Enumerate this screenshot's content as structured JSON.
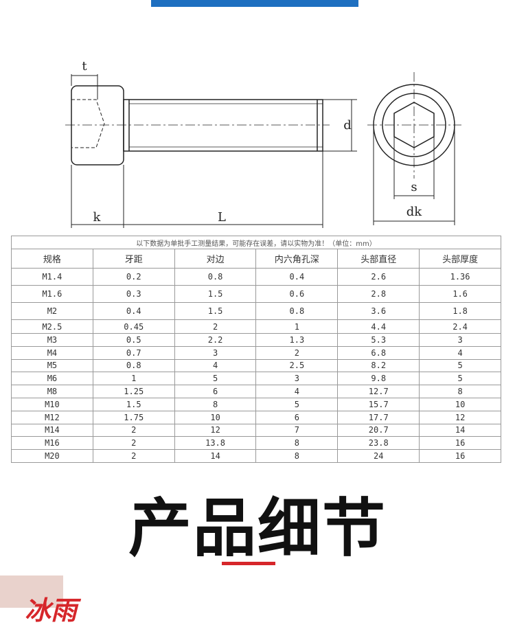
{
  "drawing": {
    "labels": {
      "t": "t",
      "d": "d",
      "k": "k",
      "L": "L",
      "s": "s",
      "dk": "dk"
    }
  },
  "table": {
    "note": "以下数据为单批手工测量结果，可能存在误差，请以实物为准！（单位：mm）",
    "columns": [
      "规格",
      "牙距",
      "对边",
      "内六角孔深",
      "头部直径",
      "头部厚度"
    ],
    "rows": [
      [
        "M1.4",
        "0.2",
        "0.8",
        "0.4",
        "2.6",
        "1.36"
      ],
      [
        "M1.6",
        "0.3",
        "1.5",
        "0.6",
        "2.8",
        "1.6"
      ],
      [
        "M2",
        "0.4",
        "1.5",
        "0.8",
        "3.6",
        "1.8"
      ],
      [
        "M2.5",
        "0.45",
        "2",
        "1",
        "4.4",
        "2.4"
      ],
      [
        "M3",
        "0.5",
        "2.2",
        "1.3",
        "5.3",
        "3"
      ],
      [
        "M4",
        "0.7",
        "3",
        "2",
        "6.8",
        "4"
      ],
      [
        "M5",
        "0.8",
        "4",
        "2.5",
        "8.2",
        "5"
      ],
      [
        "M6",
        "1",
        "5",
        "3",
        "9.8",
        "5"
      ],
      [
        "M8",
        "1.25",
        "6",
        "4",
        "12.7",
        "8"
      ],
      [
        "M10",
        "1.5",
        "8",
        "5",
        "15.7",
        "10"
      ],
      [
        "M12",
        "1.75",
        "10",
        "6",
        "17.7",
        "12"
      ],
      [
        "M14",
        "2",
        "12",
        "7",
        "20.7",
        "14"
      ],
      [
        "M16",
        "2",
        "13.8",
        "8",
        "23.8",
        "16"
      ],
      [
        "M20",
        "2",
        "14",
        "8",
        "24",
        "16"
      ]
    ]
  },
  "section_title": "产品细节",
  "logo": "冰雨"
}
